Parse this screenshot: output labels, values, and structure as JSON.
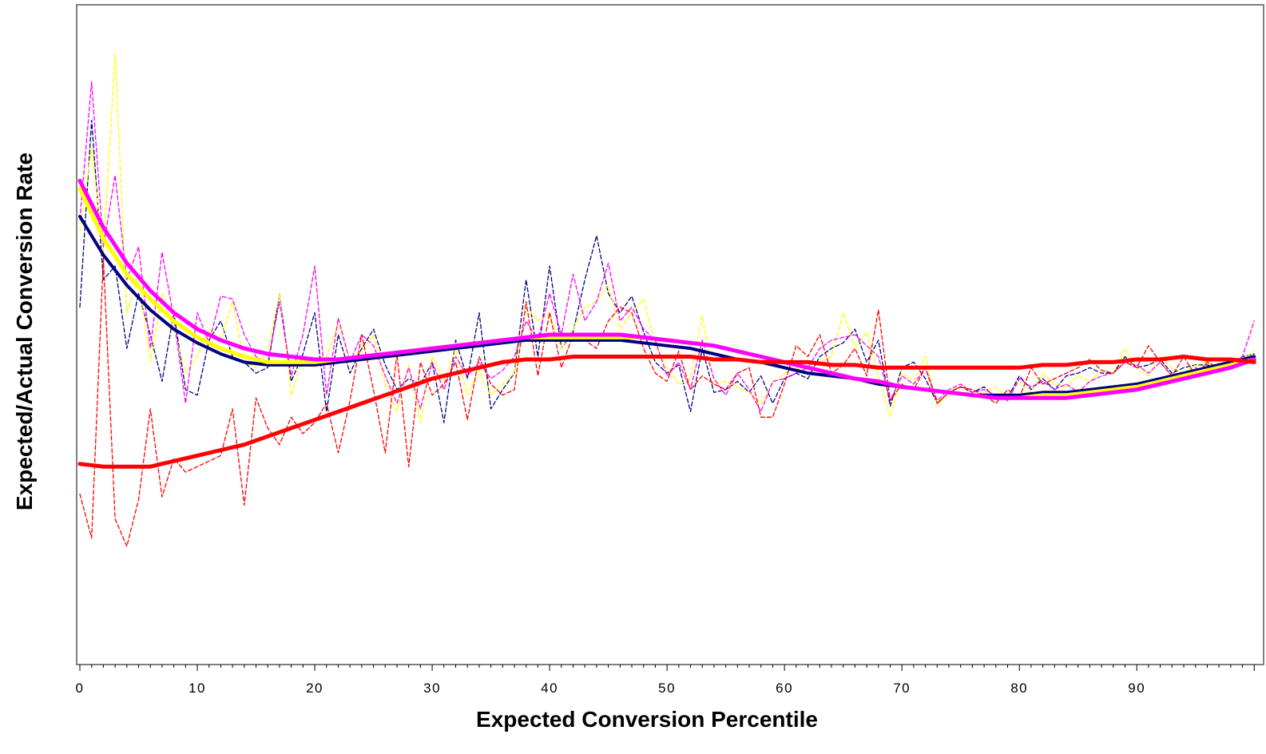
{
  "chart_data": {
    "type": "line",
    "xlabel": "Expected Conversion Percentile",
    "ylabel": "Expected/Actual Conversion Rate",
    "xlim": [
      0,
      100
    ],
    "ylim": [
      0,
      2.4
    ],
    "x_ticks": [
      0,
      10,
      20,
      30,
      40,
      50,
      60,
      70,
      80,
      90
    ],
    "grid": false,
    "legend": "none",
    "colors": {
      "navy": "#000080",
      "yellow": "#ffff00",
      "magenta": "#ff00ff",
      "red": "#ff0000"
    },
    "series": [
      {
        "color": "navy",
        "style": "solid",
        "x": [
          0,
          2,
          4,
          6,
          8,
          10,
          12,
          14,
          16,
          18,
          20,
          22,
          24,
          26,
          28,
          30,
          32,
          34,
          36,
          38,
          40,
          42,
          44,
          46,
          48,
          50,
          52,
          54,
          56,
          58,
          60,
          62,
          64,
          66,
          68,
          70,
          72,
          74,
          76,
          78,
          80,
          82,
          84,
          86,
          88,
          90,
          92,
          94,
          96,
          98,
          100
        ],
        "values": [
          1.63,
          1.49,
          1.38,
          1.29,
          1.22,
          1.17,
          1.13,
          1.1,
          1.09,
          1.09,
          1.09,
          1.1,
          1.11,
          1.12,
          1.13,
          1.14,
          1.15,
          1.16,
          1.17,
          1.18,
          1.18,
          1.18,
          1.18,
          1.18,
          1.17,
          1.16,
          1.15,
          1.13,
          1.11,
          1.1,
          1.08,
          1.06,
          1.05,
          1.04,
          1.02,
          1.01,
          1.0,
          0.99,
          0.98,
          0.98,
          0.98,
          0.99,
          0.99,
          1.0,
          1.01,
          1.02,
          1.04,
          1.06,
          1.08,
          1.1,
          1.12
        ]
      },
      {
        "color": "yellow",
        "style": "solid",
        "x": [
          0,
          2,
          4,
          6,
          8,
          10,
          12,
          14,
          16,
          18,
          20,
          22,
          24,
          26,
          28,
          30,
          32,
          34,
          36,
          38,
          40,
          42,
          44,
          46,
          48,
          50,
          52,
          54,
          56,
          58,
          60,
          62,
          64,
          66,
          68,
          70,
          72,
          74,
          76,
          78,
          80,
          82,
          84,
          86,
          88,
          90,
          92,
          94,
          96,
          98,
          100
        ],
        "values": [
          1.73,
          1.55,
          1.42,
          1.33,
          1.25,
          1.19,
          1.15,
          1.12,
          1.1,
          1.1,
          1.1,
          1.11,
          1.12,
          1.13,
          1.14,
          1.15,
          1.16,
          1.17,
          1.18,
          1.19,
          1.19,
          1.19,
          1.19,
          1.19,
          1.19,
          1.18,
          1.17,
          1.16,
          1.14,
          1.12,
          1.1,
          1.08,
          1.06,
          1.04,
          1.03,
          1.01,
          1.0,
          0.99,
          0.98,
          0.97,
          0.97,
          0.98,
          0.98,
          0.99,
          1.0,
          1.01,
          1.03,
          1.05,
          1.07,
          1.09,
          1.11
        ]
      },
      {
        "color": "magenta",
        "style": "solid",
        "x": [
          0,
          2,
          4,
          6,
          8,
          10,
          12,
          14,
          16,
          18,
          20,
          22,
          24,
          26,
          28,
          30,
          32,
          34,
          36,
          38,
          40,
          42,
          44,
          46,
          48,
          50,
          52,
          54,
          56,
          58,
          60,
          62,
          64,
          66,
          68,
          70,
          72,
          74,
          76,
          78,
          80,
          82,
          84,
          86,
          88,
          90,
          92,
          94,
          96,
          98,
          100
        ],
        "values": [
          1.76,
          1.59,
          1.46,
          1.36,
          1.28,
          1.22,
          1.18,
          1.15,
          1.13,
          1.12,
          1.11,
          1.11,
          1.12,
          1.13,
          1.14,
          1.15,
          1.16,
          1.17,
          1.18,
          1.19,
          1.2,
          1.2,
          1.2,
          1.2,
          1.19,
          1.18,
          1.17,
          1.16,
          1.14,
          1.12,
          1.1,
          1.08,
          1.06,
          1.04,
          1.03,
          1.01,
          1.0,
          0.99,
          0.98,
          0.97,
          0.97,
          0.97,
          0.97,
          0.98,
          0.99,
          1.0,
          1.02,
          1.04,
          1.06,
          1.08,
          1.11
        ]
      },
      {
        "color": "red",
        "style": "solid",
        "x": [
          0,
          2,
          4,
          6,
          8,
          10,
          12,
          14,
          16,
          18,
          20,
          22,
          24,
          26,
          28,
          30,
          32,
          34,
          36,
          38,
          40,
          42,
          44,
          46,
          48,
          50,
          52,
          54,
          56,
          58,
          60,
          62,
          64,
          66,
          68,
          70,
          72,
          74,
          76,
          78,
          80,
          82,
          84,
          86,
          88,
          90,
          92,
          94,
          96,
          98,
          100
        ],
        "values": [
          0.73,
          0.72,
          0.72,
          0.72,
          0.74,
          0.76,
          0.78,
          0.8,
          0.83,
          0.86,
          0.89,
          0.92,
          0.95,
          0.98,
          1.01,
          1.04,
          1.06,
          1.08,
          1.1,
          1.11,
          1.11,
          1.12,
          1.12,
          1.12,
          1.12,
          1.12,
          1.12,
          1.11,
          1.11,
          1.1,
          1.1,
          1.1,
          1.09,
          1.09,
          1.08,
          1.08,
          1.08,
          1.08,
          1.08,
          1.08,
          1.08,
          1.09,
          1.09,
          1.1,
          1.1,
          1.11,
          1.11,
          1.12,
          1.11,
          1.11,
          1.1
        ]
      },
      {
        "color": "navy",
        "style": "dashed",
        "x": [
          0,
          1,
          2,
          3,
          4,
          5,
          6,
          7,
          8,
          9,
          10,
          11,
          12,
          13,
          14,
          15,
          16,
          17,
          18,
          19,
          20,
          21,
          22,
          23,
          24,
          25,
          26,
          27,
          28,
          29,
          30,
          31,
          32,
          33,
          34,
          35,
          36,
          37,
          38,
          39,
          40,
          41,
          42,
          43,
          44,
          45,
          46,
          47,
          48,
          49,
          50,
          51,
          52,
          53,
          54,
          55,
          56,
          57,
          58,
          59,
          60,
          61,
          62,
          63,
          64,
          65,
          66,
          67,
          68,
          69,
          70,
          71,
          72,
          73,
          74,
          75,
          76,
          77,
          78,
          79,
          80,
          81,
          82,
          83,
          84,
          85,
          86,
          87,
          88,
          89,
          90,
          91,
          92,
          93,
          94,
          95,
          96,
          97,
          98,
          99,
          100
        ],
        "values": [
          1.3,
          1.98,
          1.4,
          1.45,
          1.15,
          1.35,
          1.2,
          1.03,
          1.28,
          1.0,
          0.98,
          1.18,
          1.25,
          1.12,
          1.1,
          1.06,
          1.08,
          1.35,
          1.03,
          1.13,
          1.28,
          0.92,
          1.2,
          1.06,
          1.15,
          1.22,
          1.09,
          1.0,
          1.04,
          1.02,
          1.1,
          0.88,
          1.18,
          1.04,
          1.28,
          0.93,
          1.0,
          1.06,
          1.4,
          1.12,
          1.45,
          1.15,
          1.21,
          1.4,
          1.56,
          1.35,
          1.28,
          1.34,
          1.21,
          1.1,
          1.06,
          1.09,
          0.92,
          1.15,
          0.99,
          1.0,
          1.03,
          0.99,
          1.05,
          0.95,
          1.04,
          1.06,
          1.04,
          1.12,
          1.15,
          1.17,
          1.22,
          1.1,
          1.18,
          0.94,
          1.08,
          1.1,
          1.04,
          0.95,
          0.99,
          1.01,
          0.99,
          1.01,
          0.97,
          0.97,
          1.05,
          1.0,
          1.04,
          1.0,
          1.05,
          1.06,
          1.08,
          1.06,
          1.06,
          1.12,
          1.08,
          1.09,
          1.11,
          1.06,
          1.08,
          1.09,
          1.09,
          1.08,
          1.1,
          1.12,
          1.13
        ]
      },
      {
        "color": "yellow",
        "style": "dashed",
        "x": [
          0,
          1,
          2,
          3,
          4,
          5,
          6,
          7,
          8,
          9,
          10,
          11,
          12,
          13,
          14,
          15,
          16,
          17,
          18,
          19,
          20,
          21,
          22,
          23,
          24,
          25,
          26,
          27,
          28,
          29,
          30,
          31,
          32,
          33,
          34,
          35,
          36,
          37,
          38,
          39,
          40,
          41,
          42,
          43,
          44,
          45,
          46,
          47,
          48,
          49,
          50,
          51,
          52,
          53,
          54,
          55,
          56,
          57,
          58,
          59,
          60,
          61,
          62,
          63,
          64,
          65,
          66,
          67,
          68,
          69,
          70,
          71,
          72,
          73,
          74,
          75,
          76,
          77,
          78,
          79,
          80,
          81,
          82,
          83,
          84,
          85,
          86,
          87,
          88,
          89,
          90,
          91,
          92,
          93,
          94,
          95,
          96,
          97,
          98,
          99,
          100
        ],
        "values": [
          1.58,
          1.88,
          1.5,
          2.22,
          1.28,
          1.42,
          1.1,
          1.35,
          1.22,
          1.06,
          1.12,
          1.22,
          1.18,
          1.32,
          1.1,
          1.08,
          1.14,
          1.35,
          0.98,
          1.12,
          1.08,
          1.12,
          1.24,
          1.11,
          1.14,
          1.2,
          1.02,
          0.92,
          1.09,
          0.88,
          1.12,
          1.03,
          1.15,
          0.98,
          1.07,
          0.98,
          1.02,
          1.06,
          1.3,
          1.25,
          1.28,
          1.15,
          1.22,
          1.3,
          1.32,
          1.38,
          1.22,
          1.28,
          1.33,
          1.16,
          1.08,
          1.02,
          1.04,
          1.27,
          1.02,
          1.03,
          1.01,
          0.99,
          0.95,
          1.02,
          1.06,
          1.08,
          1.06,
          1.1,
          1.12,
          1.28,
          1.15,
          1.21,
          1.05,
          0.9,
          1.06,
          1.03,
          1.12,
          0.94,
          0.99,
          1.02,
          0.97,
          0.99,
          1.01,
          0.97,
          1.03,
          0.99,
          1.06,
          1.02,
          1.01,
          1.05,
          1.03,
          1.07,
          1.06,
          1.15,
          1.08,
          1.05,
          1.12,
          1.08,
          1.06,
          1.09,
          1.1,
          1.07,
          1.08,
          1.11,
          1.14
        ]
      },
      {
        "color": "magenta",
        "style": "dashed",
        "x": [
          0,
          1,
          2,
          3,
          4,
          5,
          6,
          7,
          8,
          9,
          10,
          11,
          12,
          13,
          14,
          15,
          16,
          17,
          18,
          19,
          20,
          21,
          22,
          23,
          24,
          25,
          26,
          27,
          28,
          29,
          30,
          31,
          32,
          33,
          34,
          35,
          36,
          37,
          38,
          39,
          40,
          41,
          42,
          43,
          44,
          45,
          46,
          47,
          48,
          49,
          50,
          51,
          52,
          53,
          54,
          55,
          56,
          57,
          58,
          59,
          60,
          61,
          62,
          63,
          64,
          65,
          66,
          67,
          68,
          69,
          70,
          71,
          72,
          73,
          74,
          75,
          76,
          77,
          78,
          79,
          80,
          81,
          82,
          83,
          84,
          85,
          86,
          87,
          88,
          89,
          90,
          91,
          92,
          93,
          94,
          95,
          96,
          97,
          98,
          99,
          100
        ],
        "values": [
          1.62,
          2.12,
          1.52,
          1.78,
          1.4,
          1.52,
          1.15,
          1.5,
          1.26,
          0.95,
          1.28,
          1.17,
          1.34,
          1.33,
          1.2,
          1.12,
          1.1,
          1.32,
          1.05,
          1.2,
          1.45,
          0.98,
          1.26,
          1.1,
          1.2,
          1.16,
          1.05,
          0.95,
          1.08,
          0.93,
          1.1,
          1.0,
          1.12,
          1.05,
          1.1,
          1.04,
          1.07,
          1.12,
          1.25,
          1.18,
          1.35,
          1.2,
          1.42,
          1.25,
          1.32,
          1.46,
          1.25,
          1.3,
          1.22,
          1.18,
          1.05,
          1.1,
          1.0,
          1.18,
          1.04,
          0.98,
          1.06,
          1.0,
          0.92,
          1.03,
          1.04,
          1.06,
          1.08,
          1.15,
          1.18,
          1.19,
          1.2,
          1.16,
          1.12,
          0.96,
          1.05,
          1.02,
          1.08,
          0.96,
          1.0,
          1.02,
          0.99,
          1.0,
          0.98,
          0.96,
          1.04,
          1.01,
          1.03,
          1.0,
          1.02,
          0.99,
          1.03,
          1.05,
          1.06,
          1.1,
          1.09,
          1.06,
          1.1,
          1.05,
          1.04,
          1.08,
          1.06,
          1.09,
          1.1,
          1.12,
          1.25
        ]
      },
      {
        "color": "red",
        "style": "dashed",
        "x": [
          0,
          1,
          2,
          3,
          4,
          5,
          6,
          7,
          8,
          9,
          10,
          11,
          12,
          13,
          14,
          15,
          16,
          17,
          18,
          19,
          20,
          21,
          22,
          23,
          24,
          25,
          26,
          27,
          28,
          29,
          30,
          31,
          32,
          33,
          34,
          35,
          36,
          37,
          38,
          39,
          40,
          41,
          42,
          43,
          44,
          45,
          46,
          47,
          48,
          49,
          50,
          51,
          52,
          53,
          54,
          55,
          56,
          57,
          58,
          59,
          60,
          61,
          62,
          63,
          64,
          65,
          66,
          67,
          68,
          69,
          70,
          71,
          72,
          73,
          74,
          75,
          76,
          77,
          78,
          79,
          80,
          81,
          82,
          83,
          84,
          85,
          86,
          87,
          88,
          89,
          90,
          91,
          92,
          93,
          94,
          95,
          96,
          97,
          98,
          99,
          100
        ],
        "values": [
          0.62,
          0.46,
          1.48,
          0.53,
          0.43,
          0.6,
          0.93,
          0.61,
          0.75,
          0.7,
          0.72,
          0.74,
          0.76,
          0.93,
          0.58,
          0.97,
          0.86,
          0.8,
          0.9,
          0.84,
          0.88,
          0.95,
          0.77,
          0.96,
          1.2,
          1.0,
          0.77,
          1.13,
          0.72,
          1.1,
          0.98,
          1.02,
          1.1,
          0.89,
          1.12,
          1.02,
          0.98,
          1.0,
          1.32,
          1.05,
          1.28,
          1.08,
          1.2,
          1.18,
          1.15,
          1.25,
          1.3,
          1.28,
          1.15,
          1.06,
          1.03,
          1.14,
          1.0,
          1.05,
          1.02,
          1.0,
          1.06,
          1.08,
          0.9,
          0.9,
          1.02,
          1.16,
          1.12,
          1.2,
          1.06,
          1.09,
          1.15,
          1.05,
          1.29,
          0.96,
          1.02,
          1.0,
          1.08,
          0.95,
          0.99,
          1.01,
          1.0,
          0.98,
          0.95,
          1.0,
          0.97,
          1.08,
          1.02,
          1.04,
          1.06,
          1.08,
          1.11,
          1.07,
          1.06,
          1.1,
          1.08,
          1.16,
          1.1,
          1.05,
          1.12,
          1.05,
          1.1,
          1.08,
          1.11,
          1.1,
          1.12
        ]
      }
    ]
  }
}
